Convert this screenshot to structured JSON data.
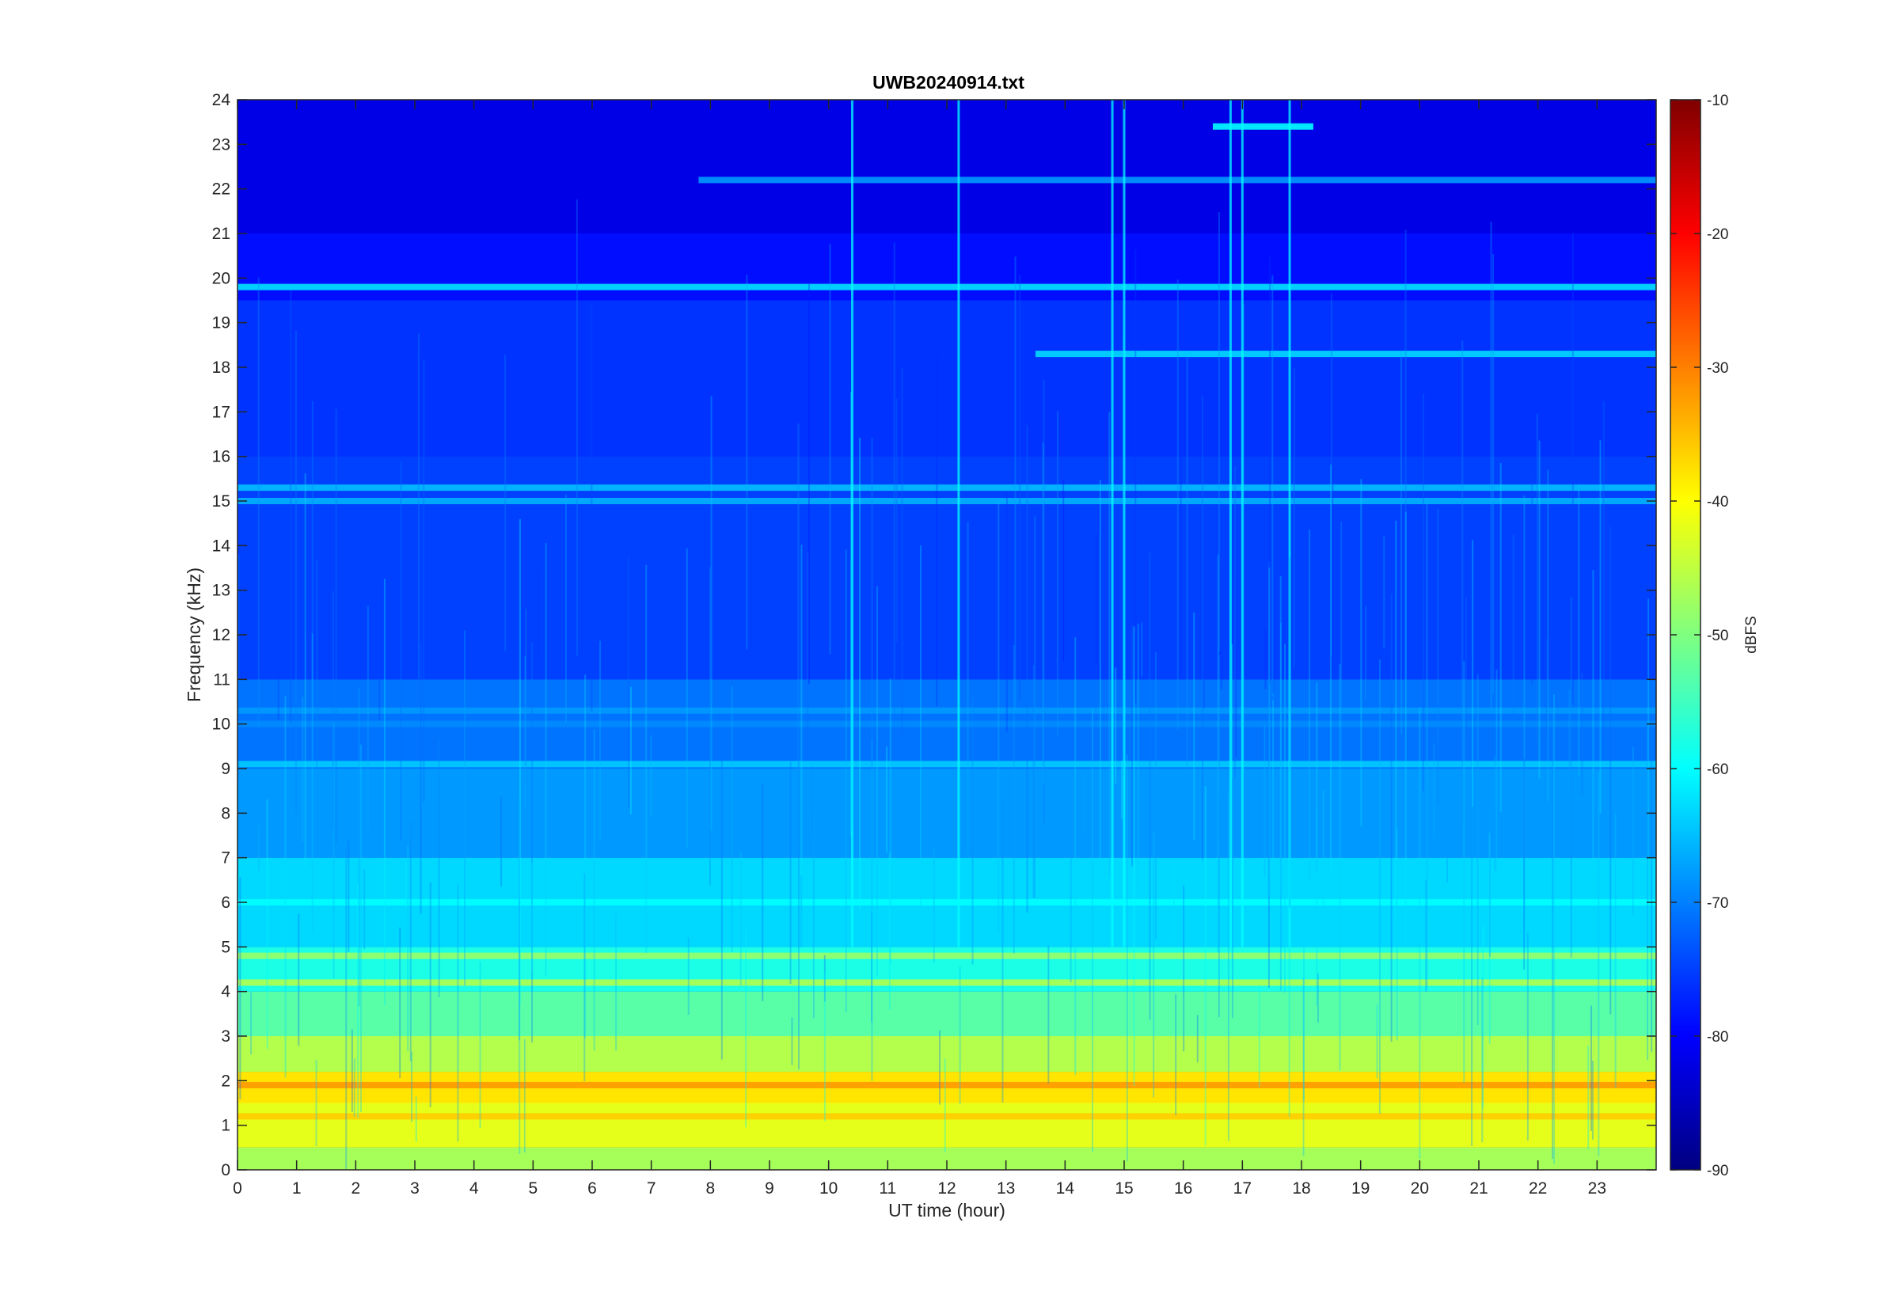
{
  "chart_data": {
    "type": "heatmap",
    "title": "UWB20240914.txt",
    "xlabel": "UT time (hour)",
    "ylabel": "Frequency (kHz)",
    "xlim": [
      0,
      24
    ],
    "ylim": [
      0,
      24
    ],
    "x_ticks": [
      0,
      1,
      2,
      3,
      4,
      5,
      6,
      7,
      8,
      9,
      10,
      11,
      12,
      13,
      14,
      15,
      16,
      17,
      18,
      19,
      20,
      21,
      22,
      23
    ],
    "y_ticks": [
      0,
      1,
      2,
      3,
      4,
      5,
      6,
      7,
      8,
      9,
      10,
      11,
      12,
      13,
      14,
      15,
      16,
      17,
      18,
      19,
      20,
      21,
      22,
      23,
      24
    ],
    "colorbar": {
      "label": "dBFS",
      "range": [
        -90,
        -10
      ],
      "ticks": [
        -90,
        -80,
        -70,
        -60,
        -50,
        -40,
        -30,
        -20,
        -10
      ],
      "colormap": "jet"
    },
    "band_levels_dbfs": [
      {
        "freq_khz": [
          0,
          0.5
        ],
        "level": -47
      },
      {
        "freq_khz": [
          0.5,
          1.5
        ],
        "level": -42
      },
      {
        "freq_khz": [
          1.5,
          2.2
        ],
        "level": -38
      },
      {
        "freq_khz": [
          2.2,
          3.0
        ],
        "level": -46
      },
      {
        "freq_khz": [
          3.0,
          4.0
        ],
        "level": -53
      },
      {
        "freq_khz": [
          4.0,
          5.0
        ],
        "level": -58
      },
      {
        "freq_khz": [
          5.0,
          7.0
        ],
        "level": -63
      },
      {
        "freq_khz": [
          7.0,
          9.0
        ],
        "level": -68
      },
      {
        "freq_khz": [
          9.0,
          11.0
        ],
        "level": -71
      },
      {
        "freq_khz": [
          11.0,
          16.0
        ],
        "level": -75
      },
      {
        "freq_khz": [
          16.0,
          19.5
        ],
        "level": -76
      },
      {
        "freq_khz": [
          19.5,
          21.0
        ],
        "level": -79
      },
      {
        "freq_khz": [
          21.0,
          24.0
        ],
        "level": -82
      }
    ],
    "persistent_lines_khz": [
      {
        "freq": 19.8,
        "level": -62,
        "x_range": [
          0,
          24
        ]
      },
      {
        "freq": 18.3,
        "level": -63,
        "x_range": [
          13.5,
          24
        ]
      },
      {
        "freq": 15.3,
        "level": -65,
        "x_range": [
          0,
          24
        ]
      },
      {
        "freq": 15.0,
        "level": -66,
        "x_range": [
          0,
          24
        ]
      },
      {
        "freq": 10.3,
        "level": -68,
        "x_range": [
          0,
          24
        ]
      },
      {
        "freq": 10.0,
        "level": -69,
        "x_range": [
          0,
          24
        ]
      },
      {
        "freq": 9.1,
        "level": -64,
        "x_range": [
          0,
          24
        ]
      },
      {
        "freq": 6.0,
        "level": -60,
        "x_range": [
          0,
          24
        ]
      },
      {
        "freq": 4.8,
        "level": -48,
        "x_range": [
          0,
          24
        ]
      },
      {
        "freq": 4.2,
        "level": -46,
        "x_range": [
          0,
          24
        ]
      },
      {
        "freq": 1.9,
        "level": -32,
        "x_range": [
          0,
          24
        ]
      },
      {
        "freq": 1.2,
        "level": -36,
        "x_range": [
          0,
          24
        ]
      },
      {
        "freq": 22.2,
        "level": -68,
        "x_range": [
          7.8,
          24
        ]
      },
      {
        "freq": 23.4,
        "level": -60,
        "x_range": [
          16.5,
          18.2
        ]
      }
    ],
    "vertical_events_hour": [
      10.4,
      12.2,
      14.8,
      15.0,
      16.8,
      17.0,
      17.8
    ]
  }
}
